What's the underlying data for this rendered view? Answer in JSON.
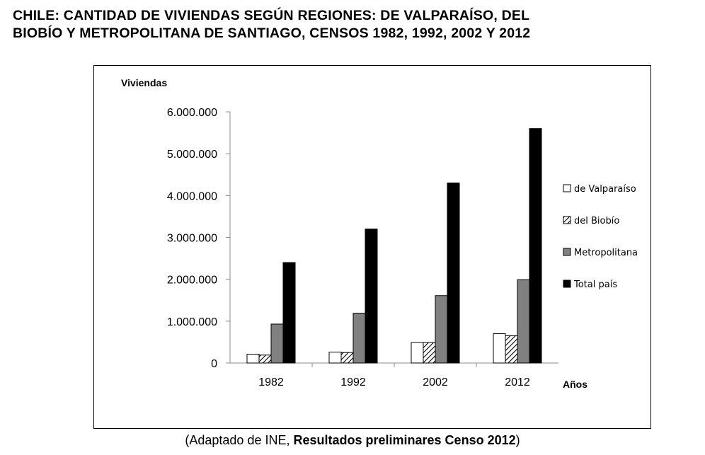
{
  "title": {
    "line1": "CHILE: CANTIDAD DE VIVIENDAS SEGÚN REGIONES: DE VALPARAÍSO, DEL",
    "line2": "BIOBÍO Y METROPOLITANA DE SANTIAGO, CENSOS 1982, 1992, 2002 Y 2012"
  },
  "source": {
    "prefix": "(Adaptado de INE, ",
    "bold": "Resultados preliminares Censo 2012",
    "suffix": ")"
  },
  "chart_data": {
    "type": "bar",
    "ylabel": "Viviendas",
    "xlabel": "Años",
    "ylim": [
      0,
      6000000
    ],
    "y_ticks": [
      0,
      1000000,
      2000000,
      3000000,
      4000000,
      5000000,
      6000000
    ],
    "y_tick_labels": [
      "0",
      "1.000.000",
      "2.000.000",
      "3.000.000",
      "4.000.000",
      "5.000.000",
      "6.000.000"
    ],
    "categories": [
      "1982",
      "1992",
      "2002",
      "2012"
    ],
    "grid": false,
    "legend_position": "right",
    "series": [
      {
        "name": "de Valparaíso",
        "values": [
          210000,
          260000,
          490000,
          700000
        ],
        "fill": "#ffffff",
        "pattern": "solid"
      },
      {
        "name": "del Biobío",
        "values": [
          190000,
          250000,
          490000,
          650000
        ],
        "fill": "#ffffff",
        "pattern": "diagonal-hatch"
      },
      {
        "name": "Metropolitana",
        "values": [
          930000,
          1190000,
          1610000,
          1990000
        ],
        "fill": "#808080",
        "pattern": "solid"
      },
      {
        "name": "Total país",
        "values": [
          2400000,
          3200000,
          4300000,
          5600000
        ],
        "fill": "#000000",
        "pattern": "solid"
      }
    ]
  }
}
